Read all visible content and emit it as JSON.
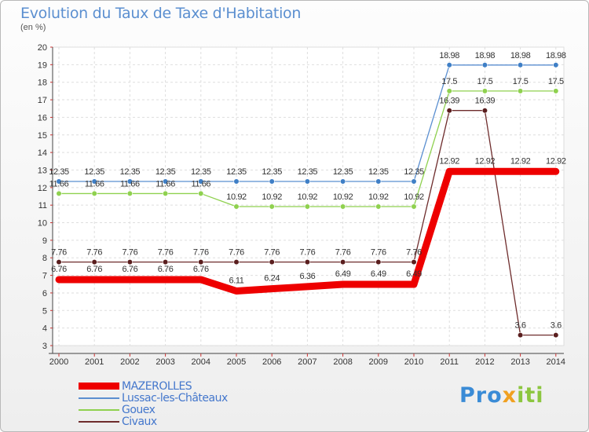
{
  "title": "Evolution du Taux de Taxe d'Habitation",
  "unit_label": "(en %)",
  "logo": {
    "part1": "Pro",
    "part2": "x",
    "part3": "iti"
  },
  "chart_data": {
    "type": "line",
    "title": "Evolution du Taux de Taxe d'Habitation",
    "ylabel": "(en %)",
    "ylim": [
      3,
      20
    ],
    "yticks": [
      3,
      4,
      5,
      6,
      7,
      8,
      9,
      10,
      11,
      12,
      13,
      14,
      15,
      16,
      17,
      18,
      19,
      20
    ],
    "x": [
      "2000",
      "2001",
      "2002",
      "2003",
      "2004",
      "2005",
      "2006",
      "2007",
      "2008",
      "2009",
      "2010",
      "2011",
      "2012",
      "2013",
      "2014"
    ],
    "grid": true,
    "legend_position": "bottom-left",
    "series": [
      {
        "name": "MAZEROLLES",
        "color": "#ee0000",
        "width": 9,
        "values": [
          6.76,
          6.76,
          6.76,
          6.76,
          6.76,
          6.11,
          6.24,
          6.36,
          6.49,
          6.49,
          6.49,
          12.92,
          12.92,
          12.92,
          12.92
        ]
      },
      {
        "name": "Lussac-les-Châteaux",
        "color": "#5b8fd0",
        "width": 1.3,
        "values": [
          12.35,
          12.35,
          12.35,
          12.35,
          12.35,
          12.35,
          12.35,
          12.35,
          12.35,
          12.35,
          12.35,
          18.98,
          18.98,
          18.98,
          18.98
        ]
      },
      {
        "name": "Gouex",
        "color": "#8fd14f",
        "width": 1.3,
        "values": [
          11.66,
          11.66,
          11.66,
          11.66,
          11.66,
          10.92,
          10.92,
          10.92,
          10.92,
          10.92,
          10.92,
          17.5,
          17.5,
          17.5,
          17.5
        ]
      },
      {
        "name": "Civaux",
        "color": "#6e2c2c",
        "width": 1.3,
        "values": [
          7.76,
          7.76,
          7.76,
          7.76,
          7.76,
          7.76,
          7.76,
          7.76,
          7.76,
          7.76,
          7.76,
          16.39,
          16.39,
          3.6,
          3.6
        ]
      }
    ]
  }
}
